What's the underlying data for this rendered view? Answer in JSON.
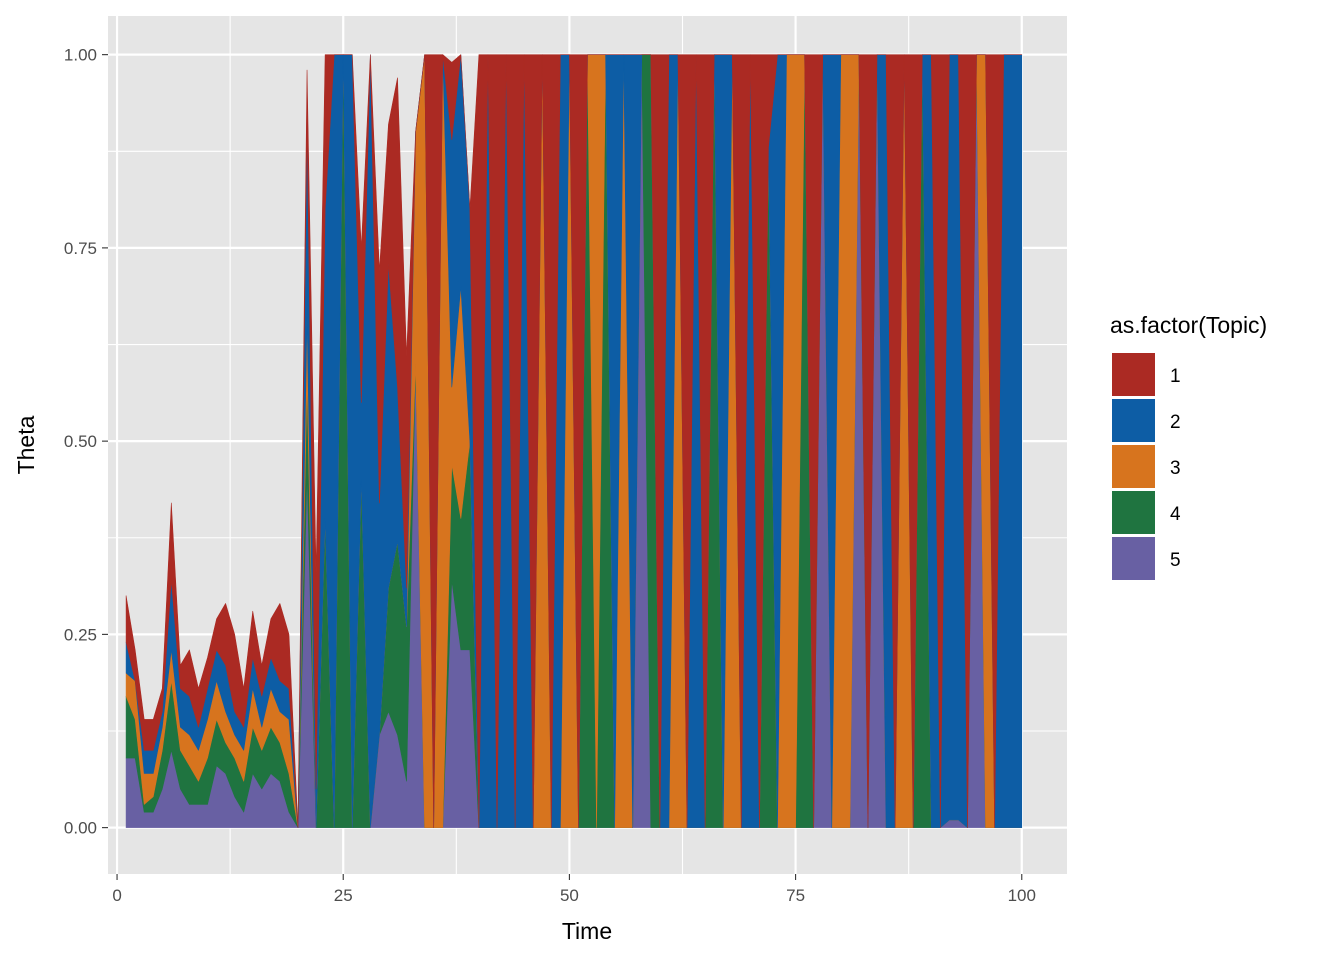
{
  "chart_data": {
    "type": "area",
    "stacked": true,
    "xlabel": "Time",
    "ylabel": "Theta",
    "xlim": [
      -1,
      105
    ],
    "ylim": [
      -0.06,
      1.05
    ],
    "x_ticks": [
      0,
      25,
      50,
      75,
      100
    ],
    "x_tick_labels": [
      "0",
      "25",
      "50",
      "75",
      "100"
    ],
    "y_ticks": [
      0,
      0.25,
      0.5,
      0.75,
      1
    ],
    "y_tick_labels": [
      "0.00",
      "0.25",
      "0.50",
      "0.75",
      "1.00"
    ],
    "grid": true,
    "panel_background": "#e5e5e5",
    "legend": {
      "title": "as.factor(Topic)",
      "position": "right",
      "entries": [
        "1",
        "2",
        "3",
        "4",
        "5"
      ]
    },
    "series_colors": {
      "1": "#ab2a23",
      "2": "#0d5da5",
      "3": "#d7741e",
      "4": "#1f7440",
      "5": "#6860a3"
    },
    "stack_order_bottom_to_top": [
      "5",
      "4",
      "3",
      "2",
      "1"
    ],
    "x": [
      1,
      2,
      3,
      4,
      5,
      6,
      7,
      8,
      9,
      10,
      11,
      12,
      13,
      14,
      15,
      16,
      17,
      18,
      19,
      20,
      21,
      22,
      23,
      24,
      25,
      26,
      27,
      28,
      29,
      30,
      31,
      32,
      33,
      34,
      35,
      36,
      37,
      38,
      39,
      40,
      41,
      42,
      43,
      44,
      45,
      46,
      47,
      48,
      49,
      50,
      51,
      52,
      53,
      54,
      55,
      56,
      57,
      58,
      59,
      60,
      61,
      62,
      63,
      64,
      65,
      66,
      67,
      68,
      69,
      70,
      71,
      72,
      73,
      74,
      75,
      76,
      77,
      78,
      79,
      80,
      81,
      82,
      83,
      84,
      85,
      86,
      87,
      88,
      89,
      90,
      91,
      92,
      93,
      94,
      95,
      96,
      97,
      98,
      99,
      100
    ],
    "series": [
      {
        "name": "1",
        "values": [
          0.06,
          0.04,
          0.04,
          0.04,
          0.03,
          0.1,
          0.03,
          0.06,
          0.05,
          0.04,
          0.04,
          0.08,
          0.1,
          0.05,
          0.06,
          0.04,
          0.05,
          0.1,
          0.07,
          0.0,
          0.07,
          0.28,
          0.2,
          0.0,
          0.0,
          0.0,
          0.2,
          0.0,
          0.3,
          0.18,
          0.4,
          0.3,
          0.0,
          0.0,
          1.0,
          0.0,
          0.1,
          0.0,
          0.0,
          1.0,
          0.0,
          1.0,
          0.0,
          1.0,
          0.0,
          1.0,
          0.0,
          1.0,
          0.0,
          0.0,
          1.0,
          0.0,
          0.0,
          0.0,
          0.0,
          0.0,
          0.0,
          0.0,
          0.0,
          1.0,
          0.0,
          0.0,
          1.0,
          0.0,
          1.0,
          0.0,
          0.0,
          0.0,
          1.0,
          0.0,
          1.0,
          0.12,
          0.0,
          0.0,
          0.0,
          0.0,
          1.0,
          0.0,
          0.0,
          0.0,
          0.0,
          0.0,
          1.0,
          0.0,
          0.0,
          1.0,
          0.0,
          1.0,
          0.0,
          0.0,
          1.0,
          0.0,
          0.0,
          1.0,
          0.0,
          0.0,
          1.0,
          0.0,
          0.0,
          0.0
        ]
      },
      {
        "name": "2",
        "values": [
          0.04,
          0.0,
          0.03,
          0.03,
          0.02,
          0.09,
          0.05,
          0.05,
          0.03,
          0.04,
          0.04,
          0.06,
          0.03,
          0.03,
          0.04,
          0.04,
          0.04,
          0.04,
          0.04,
          0.0,
          0.25,
          0.05,
          0.4,
          1.0,
          0.0,
          1.0,
          0.1,
          1.0,
          0.3,
          0.42,
          0.2,
          0.05,
          0.0,
          0.0,
          0.0,
          0.0,
          0.32,
          0.3,
          0.3,
          0.0,
          1.0,
          0.0,
          1.0,
          0.0,
          1.0,
          0.0,
          0.0,
          0.0,
          1.0,
          0.0,
          0.0,
          0.0,
          0.0,
          0.0,
          1.0,
          0.0,
          1.0,
          0.0,
          0.0,
          0.0,
          1.0,
          0.0,
          0.0,
          1.0,
          0.0,
          0.0,
          1.0,
          0.0,
          0.0,
          1.0,
          0.0,
          0.0,
          1.0,
          0.0,
          0.0,
          0.0,
          0.0,
          0.0,
          1.0,
          0.0,
          0.0,
          0.0,
          0.0,
          0.0,
          1.0,
          0.0,
          0.0,
          0.0,
          0.0,
          1.0,
          0.0,
          0.99,
          0.99,
          0.0,
          0.0,
          0.0,
          0.0,
          1.0,
          1.0,
          1.0
        ]
      },
      {
        "name": "3",
        "values": [
          0.03,
          0.05,
          0.04,
          0.03,
          0.03,
          0.04,
          0.03,
          0.04,
          0.04,
          0.05,
          0.05,
          0.04,
          0.03,
          0.04,
          0.05,
          0.03,
          0.05,
          0.04,
          0.07,
          0.0,
          0.08,
          0.0,
          0.0,
          0.0,
          0.0,
          0.0,
          0.0,
          0.0,
          0.0,
          0.0,
          0.0,
          0.0,
          0.3,
          1.0,
          0.0,
          1.0,
          0.1,
          0.3,
          0.0,
          0.0,
          0.0,
          0.0,
          0.0,
          0.0,
          0.0,
          0.0,
          1.0,
          0.0,
          0.0,
          1.0,
          0.0,
          0.0,
          1.0,
          0.0,
          0.0,
          1.0,
          0.0,
          0.0,
          0.0,
          0.0,
          0.0,
          1.0,
          0.0,
          0.0,
          0.0,
          0.0,
          0.0,
          1.0,
          0.0,
          0.0,
          0.0,
          0.0,
          0.0,
          1.0,
          1.0,
          0.0,
          0.0,
          0.0,
          0.0,
          1.0,
          1.0,
          0.0,
          0.0,
          0.0,
          0.0,
          0.0,
          1.0,
          0.0,
          0.0,
          0.0,
          0.0,
          0.0,
          0.0,
          0.0,
          0.0,
          1.0,
          0.0,
          0.0,
          0.0,
          0.0
        ]
      },
      {
        "name": "4",
        "values": [
          0.08,
          0.05,
          0.01,
          0.02,
          0.05,
          0.09,
          0.05,
          0.05,
          0.03,
          0.06,
          0.06,
          0.04,
          0.05,
          0.04,
          0.06,
          0.05,
          0.06,
          0.05,
          0.05,
          0.0,
          0.12,
          0.0,
          0.4,
          0.0,
          1.0,
          0.0,
          0.45,
          0.0,
          0.0,
          0.16,
          0.25,
          0.2,
          0.0,
          0.0,
          0.0,
          0.0,
          0.15,
          0.17,
          0.27,
          0.0,
          0.0,
          0.0,
          0.0,
          0.0,
          0.0,
          0.0,
          0.0,
          0.0,
          0.0,
          0.0,
          0.0,
          1.0,
          0.0,
          1.0,
          0.0,
          0.0,
          0.0,
          0.0,
          1.0,
          0.0,
          0.0,
          0.0,
          0.0,
          0.0,
          0.0,
          1.0,
          0.0,
          0.0,
          0.0,
          0.0,
          0.0,
          0.88,
          0.0,
          0.0,
          0.0,
          1.0,
          0.0,
          0.0,
          0.0,
          0.0,
          0.0,
          0.0,
          0.0,
          0.0,
          0.0,
          0.0,
          0.0,
          0.0,
          1.0,
          0.0,
          0.0,
          0.0,
          0.0,
          0.0,
          0.0,
          0.0,
          0.0,
          0.0,
          0.0,
          0.0
        ]
      },
      {
        "name": "5",
        "values": [
          0.09,
          0.09,
          0.02,
          0.02,
          0.05,
          0.1,
          0.05,
          0.03,
          0.03,
          0.03,
          0.08,
          0.07,
          0.04,
          0.02,
          0.07,
          0.05,
          0.07,
          0.06,
          0.02,
          0.0,
          0.46,
          0.0,
          0.0,
          0.0,
          0.0,
          0.0,
          0.0,
          0.0,
          0.12,
          0.15,
          0.12,
          0.06,
          0.6,
          0.0,
          0.0,
          0.0,
          0.32,
          0.23,
          0.23,
          0.0,
          0.0,
          0.0,
          0.0,
          0.0,
          0.0,
          0.0,
          0.0,
          0.0,
          0.0,
          0.0,
          0.0,
          0.0,
          0.0,
          0.0,
          0.0,
          0.0,
          0.0,
          1.0,
          0.0,
          0.0,
          0.0,
          0.0,
          0.0,
          0.0,
          0.0,
          0.0,
          0.0,
          0.0,
          0.0,
          0.0,
          0.0,
          0.0,
          0.0,
          0.0,
          0.0,
          0.0,
          0.0,
          1.0,
          0.0,
          0.0,
          0.0,
          1.0,
          0.0,
          1.0,
          0.0,
          0.0,
          0.0,
          0.0,
          0.0,
          0.0,
          0.0,
          0.01,
          0.01,
          0.0,
          1.0,
          0.0,
          0.0,
          0.0,
          0.0,
          0.0
        ]
      }
    ]
  }
}
